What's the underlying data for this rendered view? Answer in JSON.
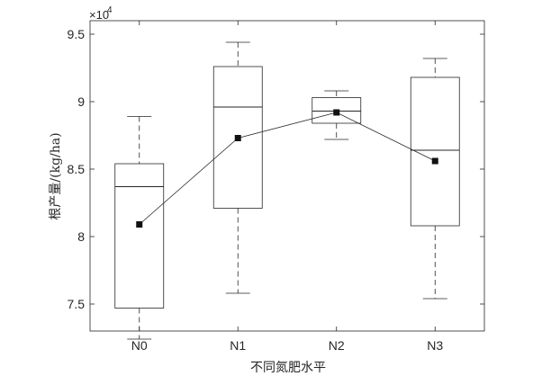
{
  "chart_data": {
    "type": "box",
    "xlabel": "不同氮肥水平",
    "ylabel": "根产量/(kg/ha)",
    "y_exponent_base": "×10",
    "y_exponent_power": "4",
    "categories": [
      "N0",
      "N1",
      "N2",
      "N3"
    ],
    "y_ticks": [
      "7.5",
      "8",
      "8.5",
      "9",
      "9.5"
    ],
    "y_tick_values": [
      7.5,
      8,
      8.5,
      9,
      9.5
    ],
    "ylim": [
      7.3,
      9.6
    ],
    "boxes": [
      {
        "category": "N0",
        "whisker_low": 7.24,
        "q1": 7.47,
        "median": 8.37,
        "q3": 8.54,
        "whisker_high": 8.89,
        "mean": 8.09
      },
      {
        "category": "N1",
        "whisker_low": 7.58,
        "q1": 8.21,
        "median": 8.96,
        "q3": 9.26,
        "whisker_high": 9.44,
        "mean": 8.73
      },
      {
        "category": "N2",
        "whisker_low": 8.72,
        "q1": 8.84,
        "median": 8.93,
        "q3": 9.03,
        "whisker_high": 9.08,
        "mean": 8.92
      },
      {
        "category": "N3",
        "whisker_low": 7.54,
        "q1": 8.08,
        "median": 8.64,
        "q3": 9.18,
        "whisker_high": 9.32,
        "mean": 8.56
      }
    ],
    "mean_line": true,
    "grid": false
  }
}
